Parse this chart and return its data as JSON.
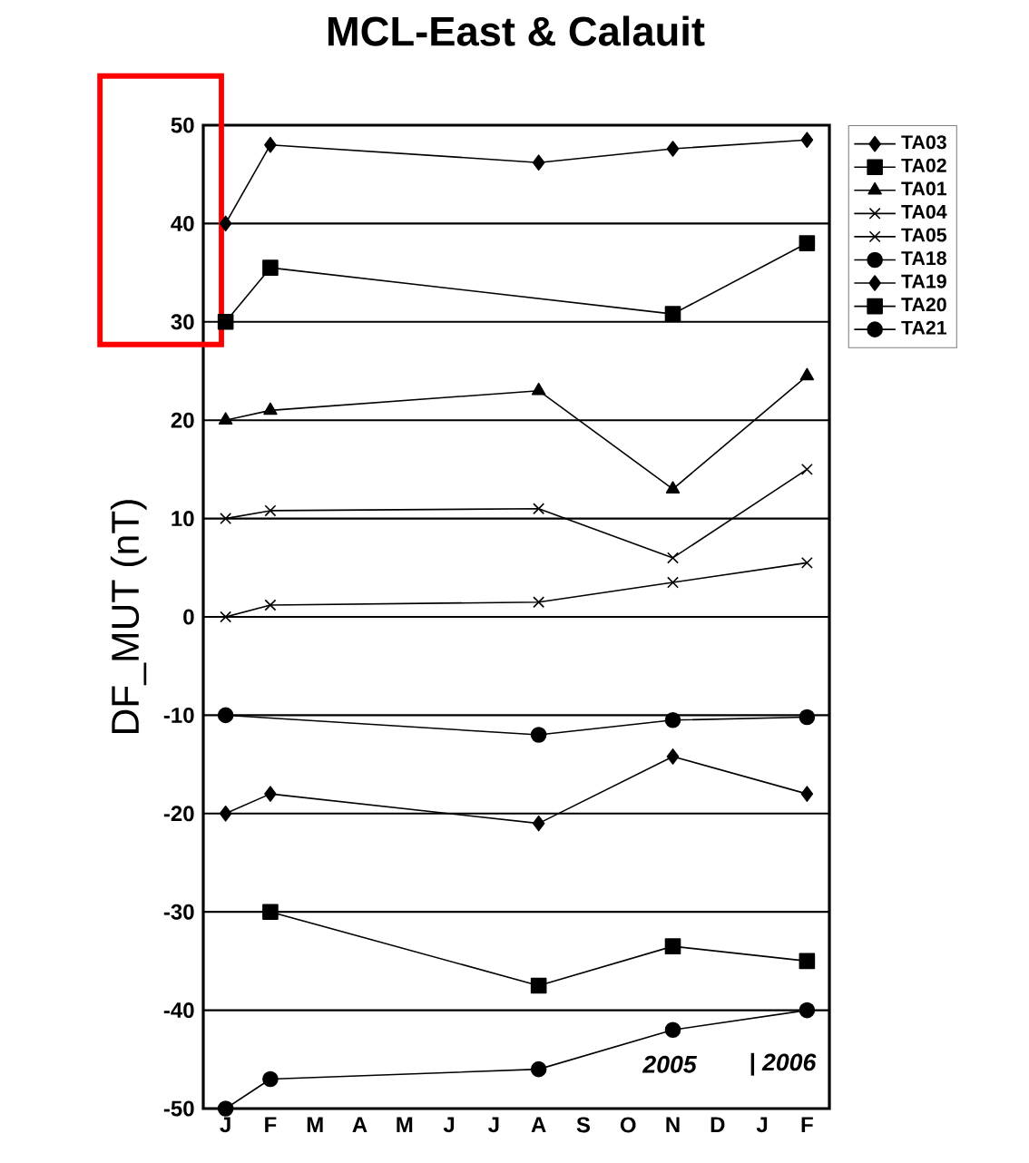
{
  "chart_data": {
    "type": "line",
    "title": "MCL-East & Calauit",
    "ylabel": "DF_MUT (nT)",
    "categories": [
      "J",
      "F",
      "M",
      "A",
      "M",
      "J",
      "J",
      "A",
      "S",
      "O",
      "N",
      "D",
      "J",
      "F"
    ],
    "ylim": [
      -50,
      50
    ],
    "yticks": [
      -50,
      -40,
      -30,
      -20,
      -10,
      0,
      10,
      20,
      30,
      40,
      50
    ],
    "grid": "y",
    "legend": "top right",
    "line_style": "solid",
    "annotations": [
      "2005",
      "| 2006"
    ],
    "series": [
      {
        "name": "TA03",
        "color": "#000000",
        "marker": "diamond",
        "values": [
          40,
          48,
          null,
          null,
          null,
          null,
          null,
          46.2,
          null,
          null,
          47.6,
          null,
          null,
          48.5
        ]
      },
      {
        "name": "TA02",
        "color": "#000000",
        "marker": "square",
        "values": [
          30,
          35.5,
          null,
          null,
          null,
          null,
          null,
          null,
          null,
          null,
          30.8,
          null,
          null,
          38
        ]
      },
      {
        "name": "TA01",
        "color": "#000000",
        "marker": "triangle",
        "values": [
          20,
          21,
          null,
          null,
          null,
          null,
          null,
          23,
          null,
          null,
          13,
          null,
          null,
          24.5
        ]
      },
      {
        "name": "TA04",
        "color": "#000000",
        "marker": "cross",
        "values": [
          10,
          10.8,
          null,
          null,
          null,
          null,
          null,
          11,
          null,
          null,
          6,
          null,
          null,
          15
        ]
      },
      {
        "name": "TA05",
        "color": "#000000",
        "marker": "cross",
        "values": [
          0,
          1.2,
          null,
          null,
          null,
          null,
          null,
          1.5,
          null,
          null,
          3.5,
          null,
          null,
          5.5
        ]
      },
      {
        "name": "TA18",
        "color": "#000000",
        "marker": "circle",
        "values": [
          -10,
          null,
          null,
          null,
          null,
          null,
          null,
          -12,
          null,
          null,
          -10.5,
          null,
          null,
          -10.2
        ]
      },
      {
        "name": "TA19",
        "color": "#000000",
        "marker": "diamond",
        "values": [
          -20,
          -18,
          null,
          null,
          null,
          null,
          null,
          -21,
          null,
          null,
          -14.2,
          null,
          null,
          -18
        ]
      },
      {
        "name": "TA20",
        "color": "#000000",
        "marker": "square",
        "values": [
          null,
          -30,
          null,
          null,
          null,
          null,
          null,
          -37.5,
          null,
          null,
          -33.5,
          null,
          null,
          -35
        ]
      },
      {
        "name": "TA21",
        "color": "#000000",
        "marker": "circle",
        "values": [
          -50,
          -47,
          null,
          null,
          null,
          null,
          null,
          -46,
          null,
          null,
          -42,
          null,
          null,
          -40
        ]
      }
    ]
  }
}
